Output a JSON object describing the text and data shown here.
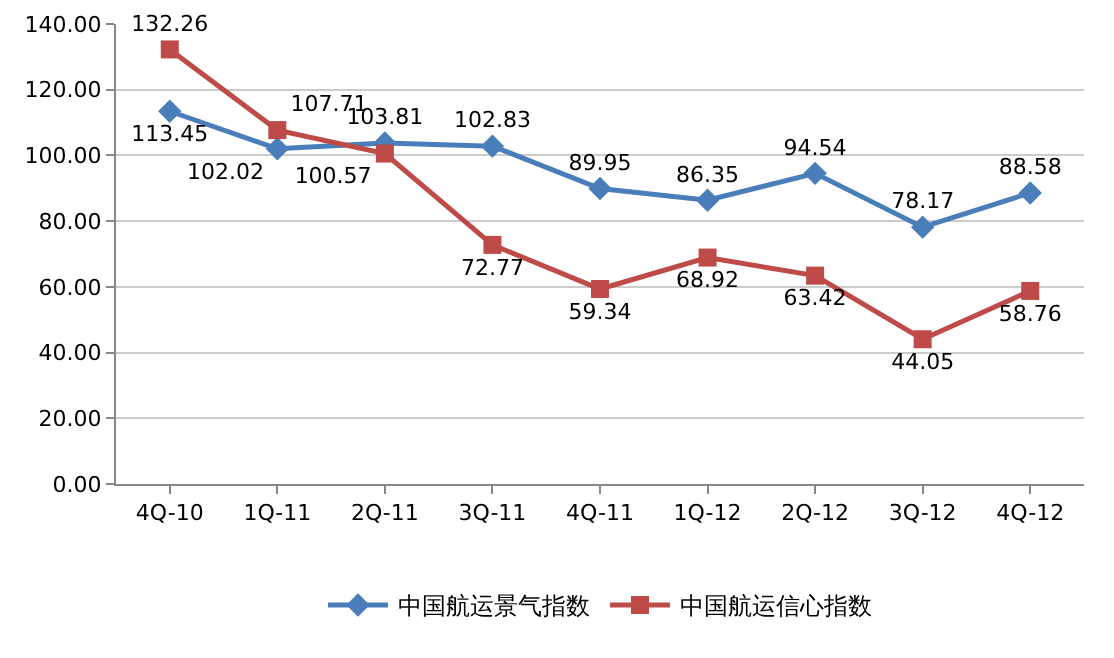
{
  "chart_data": {
    "type": "line",
    "categories": [
      "4Q-10",
      "1Q-11",
      "2Q-11",
      "3Q-11",
      "4Q-11",
      "1Q-12",
      "2Q-12",
      "3Q-12",
      "4Q-12"
    ],
    "series": [
      {
        "name": "中国航运景气指数",
        "color": "#4a7ebb",
        "marker": "diamond",
        "values": [
          113.45,
          102.02,
          103.81,
          102.83,
          89.95,
          86.35,
          94.54,
          78.17,
          88.58
        ]
      },
      {
        "name": "中国航运信心指数",
        "color": "#be4b48",
        "marker": "square",
        "values": [
          132.26,
          107.71,
          100.57,
          72.77,
          59.34,
          68.92,
          63.42,
          44.05,
          58.76
        ]
      }
    ],
    "ylim": [
      0,
      140
    ],
    "yticks": [
      {
        "value": 0,
        "label": "0.00"
      },
      {
        "value": 20,
        "label": "20.00"
      },
      {
        "value": 40,
        "label": "40.00"
      },
      {
        "value": 60,
        "label": "60.00"
      },
      {
        "value": 80,
        "label": "80.00"
      },
      {
        "value": 100,
        "label": "100.00"
      },
      {
        "value": 120,
        "label": "120.00"
      },
      {
        "value": 140,
        "label": "140.00"
      }
    ],
    "grid": "y",
    "legend": "bottom",
    "data_labels": true,
    "line_style": "solid"
  }
}
